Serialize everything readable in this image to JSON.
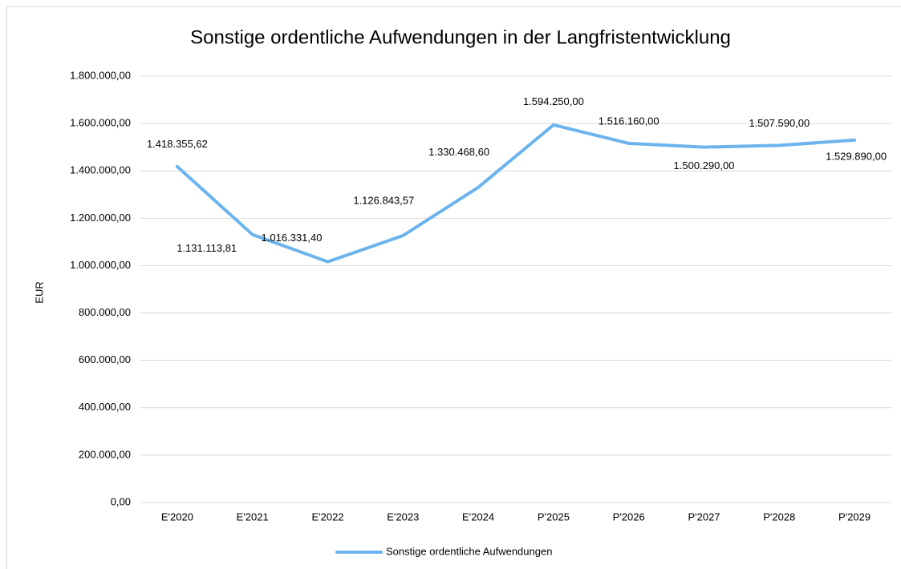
{
  "chart_data": {
    "type": "line",
    "title": "Sonstige ordentliche Aufwendungen in der Langfristentwicklung",
    "y_label": "EUR",
    "categories": [
      "E'2020",
      "E'2021",
      "E'2022",
      "E'2023",
      "E'2024",
      "P'2025",
      "P'2026",
      "P'2027",
      "P'2028",
      "P'2029"
    ],
    "series": [
      {
        "name": "Sonstige ordentliche Aufwendungen",
        "color": "#6cb4ee",
        "values": [
          1418355.62,
          1131113.81,
          1016331.4,
          1126843.57,
          1330468.6,
          1594250.0,
          1516160.0,
          1500290.0,
          1507590.0,
          1529890.0
        ],
        "value_labels": [
          "1.418.355,62",
          "1.131.113,81",
          "1.016.331,40",
          "1.126.843,57",
          "1.330.468,60",
          "1.594.250,00",
          "1.516.160,00",
          "1.500.290,00",
          "1.507.590,00",
          "1.529.890,00"
        ]
      }
    ],
    "ylim": [
      0,
      1800000
    ],
    "yticks": [
      {
        "value": 0,
        "label": "0,00"
      },
      {
        "value": 200000,
        "label": "200.000,00"
      },
      {
        "value": 400000,
        "label": "400.000,00"
      },
      {
        "value": 600000,
        "label": "600.000,00"
      },
      {
        "value": 800000,
        "label": "800.000,00"
      },
      {
        "value": 1000000,
        "label": "1.000.000,00"
      },
      {
        "value": 1200000,
        "label": "1.200.000,00"
      },
      {
        "value": 1400000,
        "label": "1.400.000,00"
      },
      {
        "value": 1600000,
        "label": "1.600.000,00"
      },
      {
        "value": 1800000,
        "label": "1.800.000,00"
      }
    ],
    "grid": true,
    "legend": "bottom"
  }
}
